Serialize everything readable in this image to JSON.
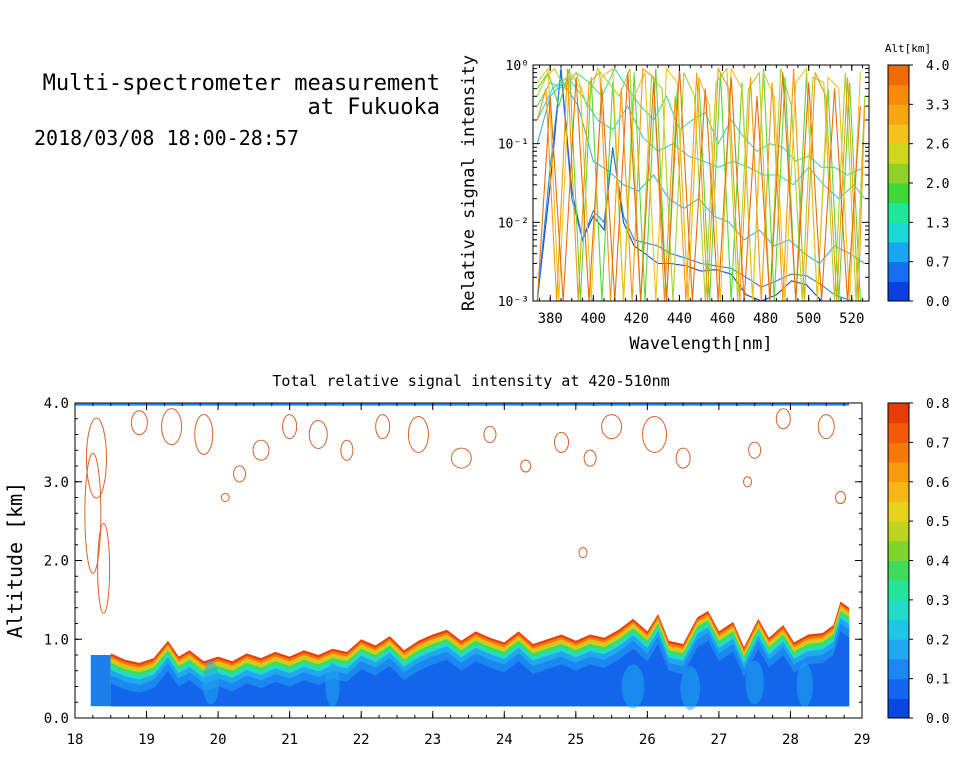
{
  "header": {
    "title_line1": "Multi-spectrometer measurement",
    "title_line2": "at Fukuoka",
    "datetime": "2018/03/08 18:00-28:57"
  },
  "chart_data": [
    {
      "type": "line",
      "title": "",
      "xlabel": "Wavelength[nm]",
      "ylabel": "Relative signal intensity",
      "xlim": [
        372,
        528
      ],
      "ylim": [
        0.001,
        1
      ],
      "yscale": "log",
      "x_ticks": [
        380,
        400,
        420,
        440,
        460,
        480,
        500,
        520
      ],
      "y_ticks": [
        {
          "value": 1,
          "label": "10⁰"
        },
        {
          "value": 0.1,
          "label": "10⁻¹"
        },
        {
          "value": 0.01,
          "label": "10⁻²"
        },
        {
          "value": 0.001,
          "label": "10⁻³"
        }
      ],
      "colorbar": {
        "title": "Alt[km]",
        "ticks": [
          "0.0",
          "0.7",
          "1.3",
          "2.0",
          "2.6",
          "3.3",
          "4.0"
        ],
        "colors": [
          "#0b3fe0",
          "#1570f0",
          "#19a6f0",
          "#18d8d8",
          "#1de89a",
          "#3fd93a",
          "#8fd12a",
          "#cfd61e",
          "#f4c21a",
          "#f7a612",
          "#f6880c",
          "#ef6a08"
        ]
      },
      "series": [
        {
          "color": "#1448c8",
          "x": [
            374,
            380,
            385,
            390,
            395,
            400,
            405,
            409,
            414,
            419,
            424,
            430,
            436,
            443,
            450,
            457,
            464,
            471,
            478,
            485,
            492,
            499,
            506,
            512,
            520,
            526
          ],
          "y": [
            0.001,
            0.03,
            0.9,
            0.025,
            0.006,
            0.012,
            0.008,
            0.09,
            0.01,
            0.005,
            0.004,
            0.003,
            0.003,
            0.0028,
            0.0024,
            0.0025,
            0.0022,
            0.0012,
            0.001,
            0.0012,
            0.0018,
            0.0016,
            0.001,
            0.001,
            0.001,
            0.001
          ]
        },
        {
          "color": "#2b7fe0",
          "x": [
            374,
            380,
            385,
            390,
            395,
            400,
            405,
            409,
            414,
            419,
            424,
            430,
            436,
            443,
            450,
            457,
            464,
            471,
            478,
            485,
            492,
            499,
            506,
            512,
            520,
            526
          ],
          "y": [
            0.001,
            0.05,
            0.8,
            0.02,
            0.006,
            0.014,
            0.01,
            0.085,
            0.012,
            0.006,
            0.0055,
            0.005,
            0.004,
            0.0035,
            0.003,
            0.0028,
            0.0026,
            0.002,
            0.0015,
            0.0018,
            0.0022,
            0.0021,
            0.0016,
            0.0012,
            0.001,
            0.001
          ]
        },
        {
          "color": "#2fb6e8",
          "x": [
            374,
            380,
            386,
            393,
            400,
            407,
            414,
            421,
            428,
            435,
            442,
            449,
            456,
            463,
            470,
            477,
            484,
            491,
            498,
            505,
            512,
            519,
            526
          ],
          "y": [
            0.1,
            0.4,
            0.6,
            0.3,
            0.06,
            0.045,
            0.03,
            0.025,
            0.04,
            0.02,
            0.015,
            0.02,
            0.012,
            0.01,
            0.006,
            0.008,
            0.005,
            0.006,
            0.004,
            0.003,
            0.005,
            0.004,
            0.003
          ]
        },
        {
          "color": "#38d2d0",
          "x": [
            374,
            381,
            388,
            395,
            402,
            409,
            416,
            423,
            430,
            437,
            444,
            451,
            458,
            465,
            472,
            479,
            486,
            493,
            500,
            507,
            514,
            521,
            526
          ],
          "y": [
            0.2,
            0.5,
            0.7,
            0.4,
            0.2,
            0.15,
            0.3,
            0.12,
            0.08,
            0.1,
            0.07,
            0.06,
            0.05,
            0.06,
            0.05,
            0.04,
            0.04,
            0.03,
            0.05,
            0.03,
            0.02,
            0.03,
            0.02
          ]
        },
        {
          "color": "#40e08a",
          "x": [
            374,
            380,
            386,
            392,
            398,
            404,
            410,
            416,
            422,
            428,
            434,
            440,
            446,
            452,
            458,
            464,
            470,
            476,
            482,
            488,
            494,
            500,
            506,
            512,
            518,
            526
          ],
          "y": [
            0.3,
            0.6,
            0.5,
            0.8,
            0.6,
            0.4,
            0.9,
            0.5,
            0.3,
            0.2,
            0.4,
            0.15,
            0.2,
            0.25,
            0.1,
            0.2,
            0.12,
            0.08,
            0.1,
            0.09,
            0.06,
            0.07,
            0.05,
            0.05,
            0.04,
            0.05
          ]
        },
        {
          "color": "#5bd63a",
          "x": [
            374,
            379,
            384,
            389,
            394,
            399,
            404,
            409,
            414,
            419,
            424,
            429,
            434,
            439,
            444,
            449,
            454,
            459,
            464,
            469,
            474,
            479,
            484,
            489,
            494,
            499,
            504,
            509,
            514,
            519,
            524
          ],
          "y": [
            0.5,
            0.8,
            0.3,
            0.9,
            0.001,
            0.7,
            0.001,
            0.6,
            0.001,
            0.8,
            0.001,
            0.9,
            0.001,
            0.5,
            0.001,
            0.7,
            0.001,
            0.8,
            0.001,
            0.6,
            0.001,
            0.9,
            0.001,
            0.7,
            0.001,
            0.8,
            0.001,
            0.5,
            0.001,
            0.6,
            0.001
          ]
        },
        {
          "color": "#a8d424",
          "x": [
            374,
            378,
            382,
            387,
            392,
            397,
            402,
            407,
            412,
            417,
            422,
            427,
            432,
            437,
            442,
            447,
            452,
            457,
            462,
            467,
            472,
            477,
            482,
            487,
            492,
            497,
            502,
            507,
            512,
            517,
            522,
            526
          ],
          "y": [
            0.4,
            0.7,
            0.9,
            0.5,
            0.8,
            0.3,
            0.9,
            0.6,
            0.4,
            0.9,
            0.001,
            0.7,
            0.5,
            0.001,
            0.8,
            0.4,
            0.001,
            0.6,
            0.9,
            0.001,
            0.5,
            0.8,
            0.001,
            0.9,
            0.3,
            0.001,
            0.7,
            0.6,
            0.001,
            0.8,
            0.001,
            0.4
          ]
        },
        {
          "color": "#f0c21a",
          "x": [
            374,
            379,
            384,
            389,
            394,
            399,
            404,
            409,
            414,
            419,
            424,
            429,
            434,
            439,
            444,
            449,
            454,
            459,
            464,
            469,
            474,
            479,
            484,
            489,
            494,
            499,
            504,
            509,
            514,
            519,
            524
          ],
          "y": [
            0.6,
            0.9,
            0.001,
            0.8,
            0.5,
            0.001,
            0.7,
            0.9,
            0.001,
            0.4,
            0.8,
            0.001,
            0.9,
            0.6,
            0.001,
            0.7,
            0.3,
            0.001,
            0.9,
            0.5,
            0.001,
            0.8,
            0.4,
            0.001,
            0.6,
            0.9,
            0.001,
            0.7,
            0.5,
            0.001,
            0.8
          ]
        },
        {
          "color": "#f39a10",
          "x": [
            374,
            378,
            383,
            388,
            393,
            398,
            403,
            408,
            413,
            418,
            423,
            428,
            433,
            438,
            443,
            448,
            453,
            458,
            463,
            468,
            473,
            478,
            483,
            488,
            493,
            498,
            503,
            508,
            513,
            518,
            523,
            526
          ],
          "y": [
            0.2,
            0.5,
            0.001,
            0.9,
            0.001,
            0.6,
            0.8,
            0.001,
            0.5,
            0.001,
            0.9,
            0.7,
            0.001,
            0.4,
            0.001,
            0.8,
            0.001,
            0.9,
            0.5,
            0.001,
            0.7,
            0.001,
            0.6,
            0.001,
            0.9,
            0.001,
            0.8,
            0.4,
            0.001,
            0.7,
            0.001,
            0.3
          ]
        },
        {
          "color": "#e66e0e",
          "x": [
            374,
            380,
            386,
            392,
            398,
            404,
            410,
            416,
            422,
            428,
            434,
            440,
            446,
            452,
            458,
            464,
            470,
            476,
            482,
            488,
            494,
            500,
            506,
            512,
            518,
            524
          ],
          "y": [
            0.001,
            0.4,
            0.001,
            0.7,
            0.001,
            0.5,
            0.001,
            0.8,
            0.001,
            0.6,
            0.001,
            0.9,
            0.001,
            0.5,
            0.001,
            0.7,
            0.001,
            0.4,
            0.001,
            0.8,
            0.001,
            0.6,
            0.001,
            0.5,
            0.001,
            0.3
          ]
        }
      ]
    },
    {
      "type": "heatmap",
      "title": "Total relative signal intensity at 420-510nm",
      "xlabel": "",
      "ylabel": "Altitude [km]",
      "xlim": [
        18,
        29
      ],
      "ylim": [
        0,
        4
      ],
      "x_ticks": [
        "18",
        "19",
        "20",
        "21",
        "22",
        "23",
        "24",
        "25",
        "26",
        "27",
        "28",
        "29"
      ],
      "y_ticks": [
        "0.0",
        "1.0",
        "2.0",
        "3.0",
        "4.0"
      ],
      "data_extent": {
        "t_start": 18.22,
        "t_end": 28.82,
        "alt_bottom": 0.15
      },
      "colorbar": {
        "ticks": [
          "0.0",
          "0.1",
          "0.2",
          "0.3",
          "0.4",
          "0.5",
          "0.6",
          "0.7",
          "0.8"
        ],
        "colors": [
          "#0a46e0",
          "#1366ec",
          "#1a88f0",
          "#1fa8ee",
          "#21c6e6",
          "#22dcc8",
          "#25e49a",
          "#3edc5a",
          "#7fd42e",
          "#bfd422",
          "#e8d21c",
          "#f7b816",
          "#f89a10",
          "#f5780c",
          "#f05a08",
          "#e83c06"
        ]
      },
      "boundary_layer_top_km": [
        [
          18.5,
          0.82
        ],
        [
          18.7,
          0.74
        ],
        [
          18.9,
          0.7
        ],
        [
          19.1,
          0.76
        ],
        [
          19.3,
          0.98
        ],
        [
          19.45,
          0.78
        ],
        [
          19.6,
          0.86
        ],
        [
          19.8,
          0.72
        ],
        [
          20.0,
          0.78
        ],
        [
          20.2,
          0.72
        ],
        [
          20.4,
          0.82
        ],
        [
          20.6,
          0.76
        ],
        [
          20.8,
          0.84
        ],
        [
          21.0,
          0.78
        ],
        [
          21.2,
          0.86
        ],
        [
          21.4,
          0.8
        ],
        [
          21.6,
          0.88
        ],
        [
          21.8,
          0.84
        ],
        [
          22.0,
          1.0
        ],
        [
          22.2,
          0.92
        ],
        [
          22.4,
          1.04
        ],
        [
          22.6,
          0.86
        ],
        [
          22.8,
          0.98
        ],
        [
          23.0,
          1.06
        ],
        [
          23.2,
          1.12
        ],
        [
          23.4,
          0.98
        ],
        [
          23.6,
          1.1
        ],
        [
          23.8,
          1.02
        ],
        [
          24.0,
          0.96
        ],
        [
          24.2,
          1.1
        ],
        [
          24.4,
          0.94
        ],
        [
          24.6,
          1.0
        ],
        [
          24.8,
          1.06
        ],
        [
          25.0,
          0.98
        ],
        [
          25.2,
          1.06
        ],
        [
          25.4,
          1.02
        ],
        [
          25.6,
          1.12
        ],
        [
          25.8,
          1.26
        ],
        [
          26.0,
          1.1
        ],
        [
          26.15,
          1.32
        ],
        [
          26.3,
          0.98
        ],
        [
          26.5,
          0.94
        ],
        [
          26.7,
          1.28
        ],
        [
          26.85,
          1.36
        ],
        [
          27.0,
          1.1
        ],
        [
          27.2,
          1.22
        ],
        [
          27.35,
          0.9
        ],
        [
          27.55,
          1.26
        ],
        [
          27.7,
          1.02
        ],
        [
          27.9,
          1.18
        ],
        [
          28.05,
          0.96
        ],
        [
          28.25,
          1.06
        ],
        [
          28.45,
          1.08
        ],
        [
          28.6,
          1.18
        ],
        [
          28.7,
          1.48
        ],
        [
          28.82,
          1.4
        ]
      ]
    }
  ]
}
